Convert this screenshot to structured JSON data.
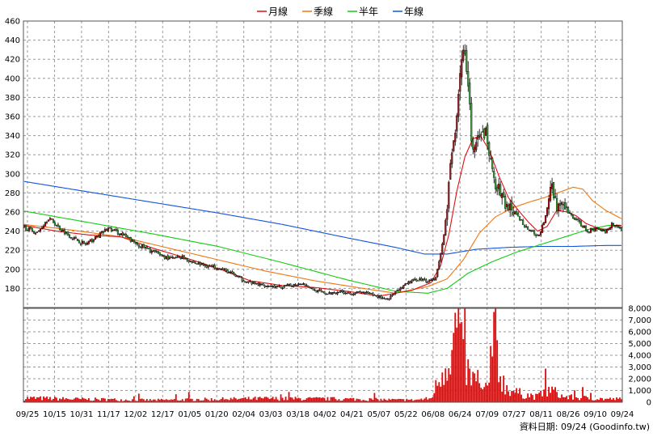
{
  "chart_data": {
    "type": "candlestick",
    "legend": [
      {
        "name": "月線",
        "color": "#dd1111"
      },
      {
        "name": "季線",
        "color": "#ee7711"
      },
      {
        "name": "半年",
        "color": "#11cc11"
      },
      {
        "name": "年線",
        "color": "#1155dd"
      }
    ],
    "price_axis": {
      "ylim": [
        160,
        460
      ],
      "ticks": [
        180,
        200,
        220,
        240,
        260,
        280,
        300,
        320,
        340,
        360,
        380,
        400,
        420,
        440,
        460
      ]
    },
    "volume_axis": {
      "ylim": [
        0,
        8000
      ],
      "ticks": [
        0,
        1000,
        2000,
        3000,
        4000,
        5000,
        6000,
        7000,
        8000
      ],
      "tick_labels": [
        "0",
        "1,000",
        "2,000",
        "3,000",
        "4,000",
        "5,000",
        "6,000",
        "7,000",
        "8,000"
      ]
    },
    "x_tick_labels": [
      "09/25",
      "10/15",
      "10/31",
      "11/17",
      "12/02",
      "12/17",
      "01/05",
      "01/20",
      "02/04",
      "03/03",
      "03/18",
      "04/02",
      "04/21",
      "05/07",
      "05/22",
      "06/08",
      "06/24",
      "07/09",
      "07/27",
      "08/11",
      "08/26",
      "09/10",
      "09/24"
    ],
    "close_anchors": [
      [
        0,
        244
      ],
      [
        8,
        238
      ],
      [
        15,
        254
      ],
      [
        22,
        243
      ],
      [
        30,
        233
      ],
      [
        38,
        226
      ],
      [
        45,
        234
      ],
      [
        52,
        243
      ],
      [
        60,
        237
      ],
      [
        68,
        228
      ],
      [
        75,
        222
      ],
      [
        82,
        217
      ],
      [
        90,
        211
      ],
      [
        98,
        213
      ],
      [
        105,
        207
      ],
      [
        112,
        204
      ],
      [
        120,
        202
      ],
      [
        128,
        196
      ],
      [
        135,
        189
      ],
      [
        142,
        185
      ],
      [
        150,
        183
      ],
      [
        158,
        181
      ],
      [
        165,
        183
      ],
      [
        172,
        186
      ],
      [
        180,
        178
      ],
      [
        188,
        174
      ],
      [
        195,
        177
      ],
      [
        202,
        175
      ],
      [
        210,
        176
      ],
      [
        218,
        172
      ],
      [
        225,
        169
      ],
      [
        232,
        178
      ],
      [
        238,
        186
      ],
      [
        244,
        190
      ],
      [
        250,
        188
      ],
      [
        255,
        191
      ],
      [
        260,
        235
      ],
      [
        264,
        305
      ],
      [
        268,
        366
      ],
      [
        270,
        410
      ],
      [
        272,
        432
      ],
      [
        275,
        385
      ],
      [
        278,
        322
      ],
      [
        282,
        335
      ],
      [
        286,
        345
      ],
      [
        290,
        300
      ],
      [
        294,
        283
      ],
      [
        298,
        268
      ],
      [
        302,
        262
      ],
      [
        306,
        255
      ],
      [
        310,
        246
      ],
      [
        314,
        240
      ],
      [
        318,
        234
      ],
      [
        322,
        248
      ],
      [
        324,
        262
      ],
      [
        326,
        290
      ],
      [
        330,
        268
      ],
      [
        335,
        262
      ],
      [
        340,
        255
      ],
      [
        345,
        247
      ],
      [
        350,
        240
      ],
      [
        355,
        243
      ],
      [
        360,
        240
      ],
      [
        365,
        248
      ],
      [
        370,
        242
      ]
    ],
    "ma_month": [
      [
        0,
        246
      ],
      [
        20,
        240
      ],
      [
        40,
        236
      ],
      [
        60,
        234
      ],
      [
        80,
        222
      ],
      [
        100,
        212
      ],
      [
        120,
        201
      ],
      [
        140,
        188
      ],
      [
        160,
        183
      ],
      [
        180,
        181
      ],
      [
        200,
        177
      ],
      [
        220,
        172
      ],
      [
        240,
        178
      ],
      [
        252,
        186
      ],
      [
        258,
        204
      ],
      [
        263,
        236
      ],
      [
        268,
        282
      ],
      [
        273,
        318
      ],
      [
        278,
        337
      ],
      [
        283,
        339
      ],
      [
        288,
        325
      ],
      [
        294,
        298
      ],
      [
        300,
        275
      ],
      [
        306,
        262
      ],
      [
        312,
        250
      ],
      [
        318,
        240
      ],
      [
        324,
        245
      ],
      [
        330,
        262
      ],
      [
        336,
        260
      ],
      [
        342,
        256
      ],
      [
        348,
        248
      ],
      [
        354,
        244
      ],
      [
        360,
        241
      ],
      [
        366,
        246
      ],
      [
        370,
        246
      ]
    ],
    "ma_quarter": [
      [
        0,
        247
      ],
      [
        30,
        241
      ],
      [
        60,
        234
      ],
      [
        90,
        222
      ],
      [
        120,
        210
      ],
      [
        150,
        198
      ],
      [
        180,
        188
      ],
      [
        210,
        180
      ],
      [
        230,
        175
      ],
      [
        250,
        182
      ],
      [
        262,
        190
      ],
      [
        272,
        210
      ],
      [
        282,
        238
      ],
      [
        292,
        255
      ],
      [
        302,
        264
      ],
      [
        312,
        270
      ],
      [
        322,
        275
      ],
      [
        332,
        281
      ],
      [
        340,
        286
      ],
      [
        346,
        284
      ],
      [
        352,
        272
      ],
      [
        360,
        262
      ],
      [
        370,
        253
      ]
    ],
    "ma_half": [
      [
        0,
        261
      ],
      [
        40,
        249
      ],
      [
        80,
        237
      ],
      [
        120,
        224
      ],
      [
        160,
        207
      ],
      [
        200,
        189
      ],
      [
        230,
        177
      ],
      [
        250,
        175
      ],
      [
        262,
        180
      ],
      [
        275,
        196
      ],
      [
        290,
        208
      ],
      [
        305,
        218
      ],
      [
        320,
        226
      ],
      [
        335,
        234
      ],
      [
        350,
        242
      ],
      [
        362,
        246
      ],
      [
        370,
        246
      ]
    ],
    "ma_year": [
      [
        0,
        292
      ],
      [
        40,
        281
      ],
      [
        80,
        270
      ],
      [
        120,
        259
      ],
      [
        160,
        247
      ],
      [
        200,
        233
      ],
      [
        230,
        223
      ],
      [
        248,
        216
      ],
      [
        262,
        216
      ],
      [
        280,
        221
      ],
      [
        300,
        223
      ],
      [
        320,
        224
      ],
      [
        340,
        224
      ],
      [
        360,
        225
      ],
      [
        370,
        225
      ]
    ],
    "volume_profile": [
      [
        0,
        400
      ],
      [
        30,
        300
      ],
      [
        80,
        200
      ],
      [
        150,
        350
      ],
      [
        200,
        300
      ],
      [
        240,
        200
      ],
      [
        252,
        350
      ],
      [
        256,
        1800
      ],
      [
        262,
        4000
      ],
      [
        266,
        5800
      ],
      [
        269,
        7800
      ],
      [
        272,
        3800
      ],
      [
        276,
        2500
      ],
      [
        280,
        1800
      ],
      [
        284,
        1000
      ],
      [
        288,
        1600
      ],
      [
        290,
        3000
      ],
      [
        292,
        7800
      ],
      [
        294,
        3000
      ],
      [
        298,
        1500
      ],
      [
        305,
        900
      ],
      [
        318,
        500
      ],
      [
        326,
        1200
      ],
      [
        334,
        500
      ],
      [
        360,
        300
      ],
      [
        370,
        300
      ]
    ],
    "credit": "資料日期: 09/24  (Goodinfo.tw)"
  }
}
